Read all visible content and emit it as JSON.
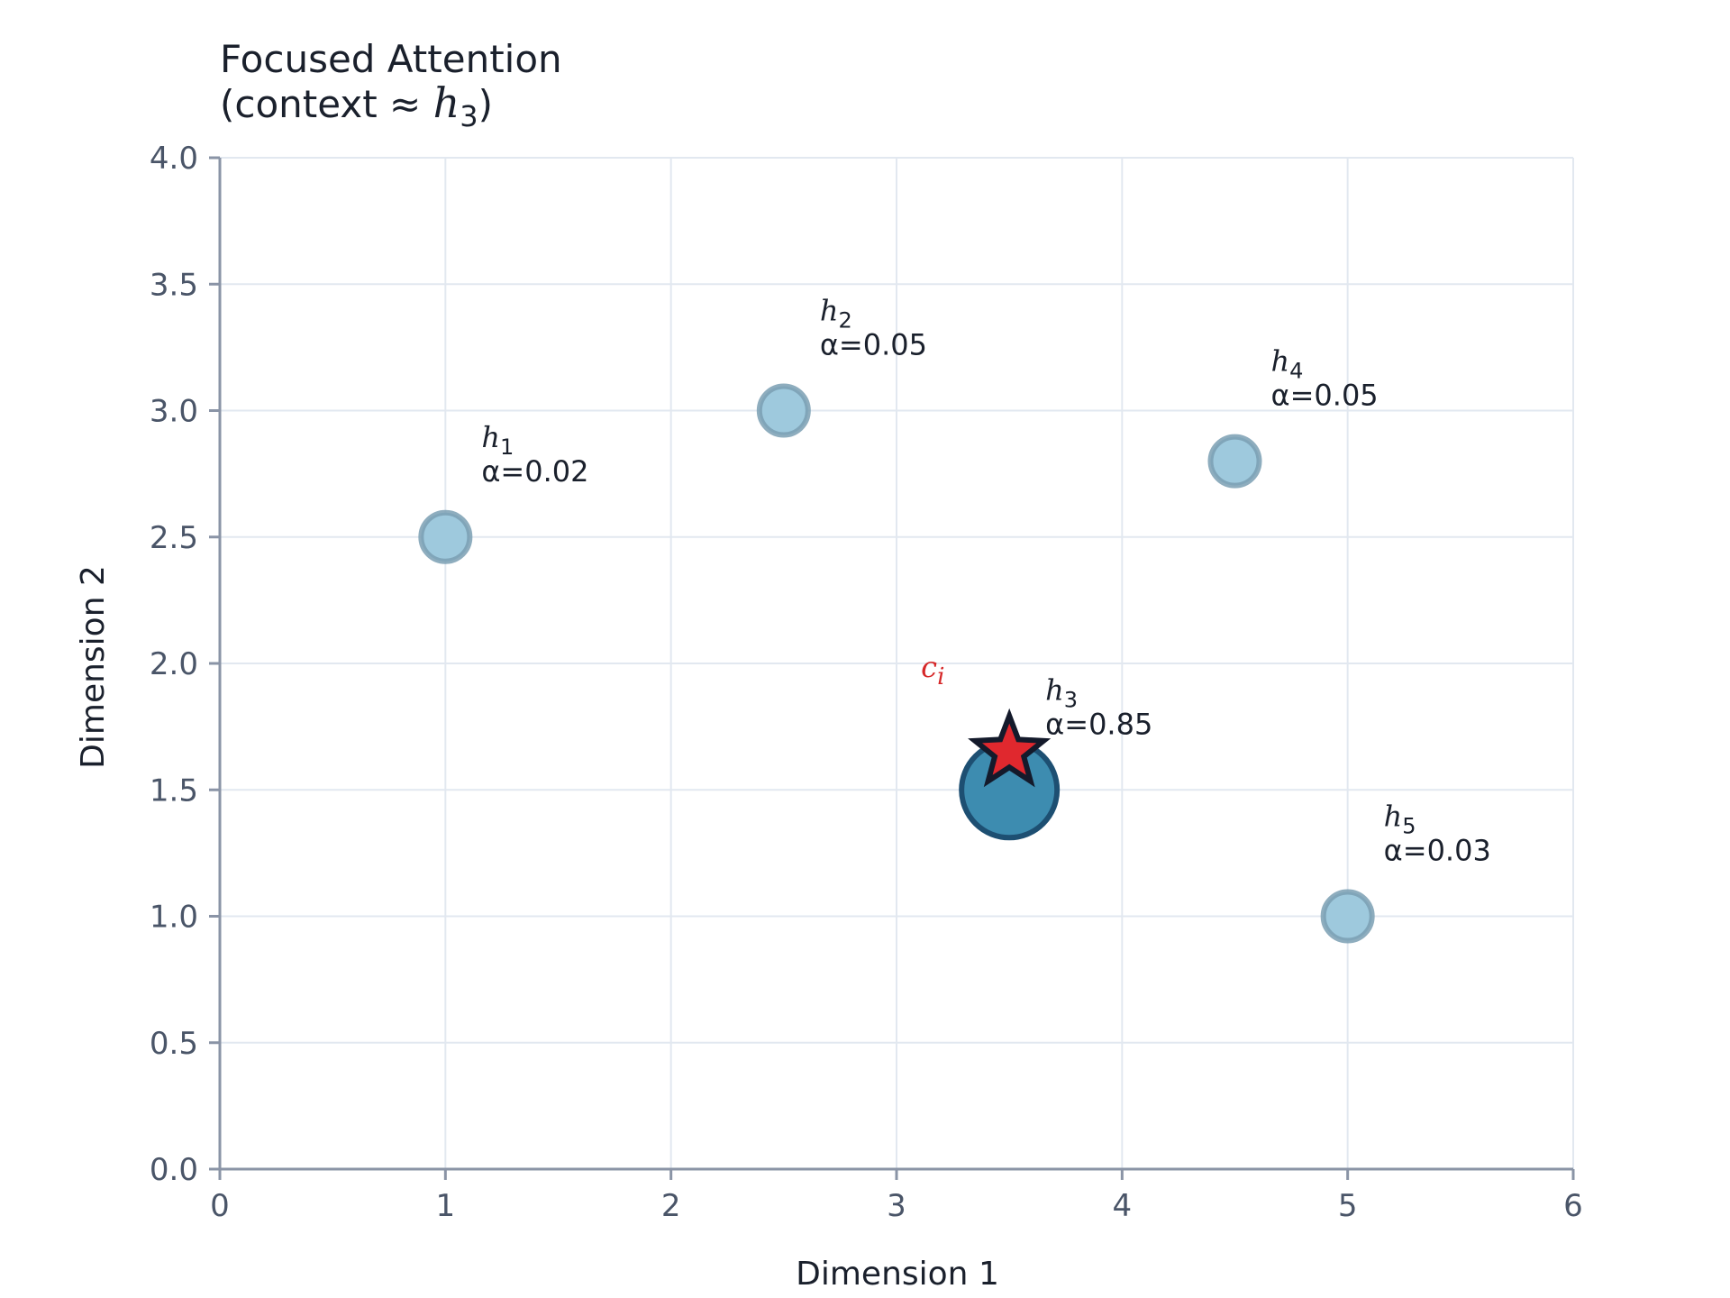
{
  "chart_data": {
    "type": "scatter",
    "title": "Focused Attention",
    "subtitle": {
      "prefix": "(context ≈ ",
      "symbol": "h",
      "subscript": "3",
      "suffix": ")"
    },
    "xlabel": "Dimension 1",
    "ylabel": "Dimension 2",
    "xlim": [
      0,
      6
    ],
    "ylim": [
      0.0,
      4.0
    ],
    "xticks": [
      0,
      1,
      2,
      3,
      4,
      5,
      6
    ],
    "yticks": [
      "0.0",
      "0.5",
      "1.0",
      "1.5",
      "2.0",
      "2.5",
      "3.0",
      "3.5",
      "4.0"
    ],
    "grid": true,
    "points": [
      {
        "name": "h",
        "subscript": "1",
        "x": 1.0,
        "y": 2.5,
        "weight": "α=0.02",
        "focused": false
      },
      {
        "name": "h",
        "subscript": "2",
        "x": 2.5,
        "y": 3.0,
        "weight": "α=0.05",
        "focused": false
      },
      {
        "name": "h",
        "subscript": "3",
        "x": 3.5,
        "y": 1.5,
        "weight": "α=0.85",
        "focused": true
      },
      {
        "name": "h",
        "subscript": "4",
        "x": 4.5,
        "y": 2.8,
        "weight": "α=0.05",
        "focused": false
      },
      {
        "name": "h",
        "subscript": "5",
        "x": 5.0,
        "y": 1.0,
        "weight": "α=0.03",
        "focused": false
      }
    ],
    "context": {
      "name": "c",
      "subscript": "i",
      "x": 3.5,
      "y": 1.65
    },
    "colors": {
      "point_fill": "#9ec9dd",
      "point_stroke": "#7a9fb3",
      "focused_fill": "#3d8cb0",
      "focused_stroke": "#1d4f72",
      "star_fill": "#e0282e",
      "star_stroke": "#141a2b",
      "context_label": "#d62728",
      "grid": "#e2e8f0",
      "axis": "#8a94a6"
    }
  }
}
